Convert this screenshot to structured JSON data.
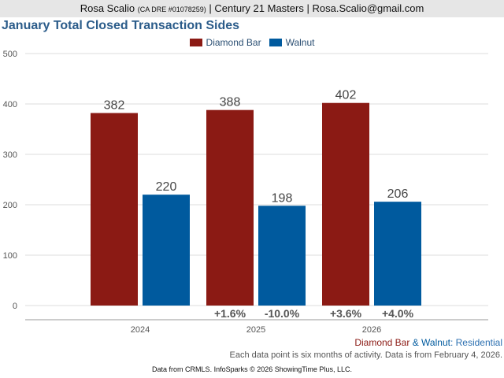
{
  "header": {
    "agent_name": "Rosa Scalio",
    "license": "(CA DRE #01078259)",
    "separator": "|",
    "brokerage": "Century 21 Masters",
    "email": "Rosa.Scalio@gmail.com"
  },
  "colors": {
    "diamond_bar": "#8b1a14",
    "walnut": "#005a9e",
    "grid": "#dddddd",
    "axis": "#999999",
    "footer_type": "#2b6fb0"
  },
  "chart_data": {
    "type": "bar",
    "title": "January Total Closed Transaction Sides",
    "categories": [
      "2024",
      "2025",
      "2026"
    ],
    "series": [
      {
        "name": "Diamond Bar",
        "values": [
          382,
          388,
          402
        ],
        "changes": [
          "",
          "+1.6%",
          "+3.6%"
        ]
      },
      {
        "name": "Walnut",
        "values": [
          220,
          198,
          206
        ],
        "changes": [
          "",
          "-10.0%",
          "+4.0%"
        ]
      }
    ],
    "ylim": [
      0,
      500
    ],
    "yticks": [
      0,
      100,
      200,
      300,
      400,
      500
    ],
    "xlabel": "",
    "ylabel": "",
    "legend": "top-center",
    "grid": true
  },
  "footer": {
    "series_a": "Diamond Bar",
    "amp": "&",
    "series_b": "Walnut",
    "type": ": Residential",
    "note": "Each data point is six months of activity. Data is from February 4, 2026.",
    "source": "Data from CRMLS. InfoSparks © 2026 ShowingTime Plus, LLC."
  }
}
